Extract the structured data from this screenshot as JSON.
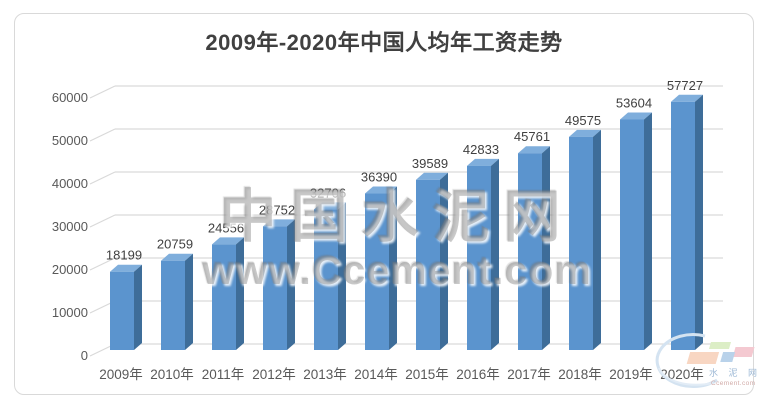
{
  "title": "2009年-2020年中国人均年工资走势",
  "chart_data": {
    "type": "bar",
    "style": "3d-column",
    "title": "2009年-2020年中国人均年工资走势",
    "categories": [
      "2009年",
      "2010年",
      "2011年",
      "2012年",
      "2013年",
      "2014年",
      "2015年",
      "2016年",
      "2017年",
      "2018年",
      "2019年",
      "2020年"
    ],
    "values": [
      18199,
      20759,
      24556,
      28752,
      32706,
      36390,
      39589,
      42833,
      45761,
      49575,
      53604,
      57727
    ],
    "xlabel": "",
    "ylabel": "",
    "ylim": [
      0,
      60000
    ],
    "yticks": [
      0,
      10000,
      20000,
      30000,
      40000,
      50000,
      60000
    ],
    "grid": true,
    "legend": false,
    "data_labels": true,
    "colors": {
      "bar_front": "#5B94CE",
      "bar_side": "#3E6D99",
      "bar_top": "#7FAEDC",
      "gridline": "#D9D9D9",
      "axis_text": "#595959",
      "data_label_text": "#404040",
      "title_text": "#404040",
      "frame_border": "#D9D9D9"
    }
  },
  "watermark": {
    "line1": "中国水泥网",
    "line2": "www.Ccement.com"
  },
  "logo": {
    "name": "水 泥 网",
    "domain": "Ccement.com"
  }
}
